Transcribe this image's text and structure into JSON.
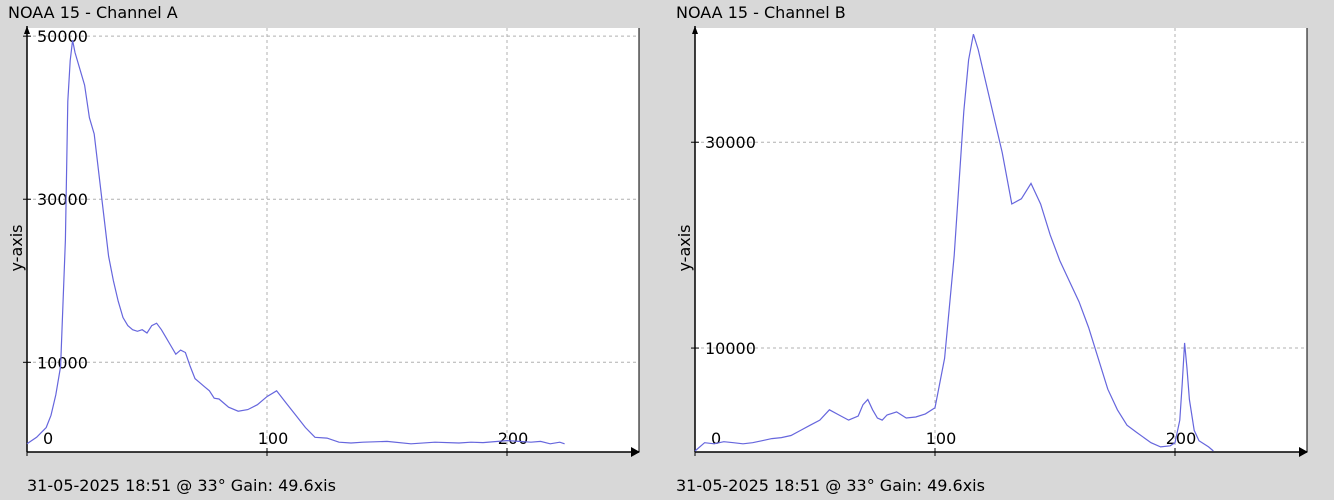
{
  "chart_data": [
    {
      "type": "line",
      "title": "NOAA 15 - Channel A",
      "ylabel": "y-axis",
      "xlabel": "",
      "xlim": [
        0,
        255
      ],
      "ylim": [
        -1000,
        51000
      ],
      "xticks": [
        0,
        100,
        200
      ],
      "xtick_labels": [
        "0",
        "100",
        "200"
      ],
      "yticks": [
        10000,
        30000,
        50000
      ],
      "ytick_labels": [
        "10000",
        "30000",
        "50000"
      ],
      "grid": true,
      "line_color": "#6666dd",
      "footer": "31-05-2025 18:51 @ 33° Gain: 49.6xis",
      "series": [
        {
          "x": [
            0,
            4,
            8,
            10,
            12,
            14,
            16,
            17,
            18,
            19,
            20,
            22,
            24,
            26,
            28,
            30,
            32,
            34,
            36,
            38,
            40,
            42,
            44,
            46,
            48,
            50,
            52,
            54,
            56,
            58,
            60,
            62,
            64,
            66,
            68,
            70,
            72,
            74,
            76,
            78,
            80,
            84,
            88,
            92,
            96,
            100,
            104,
            108,
            112,
            116,
            120,
            125,
            130,
            135,
            140,
            150,
            160,
            170,
            180,
            185,
            190,
            200,
            205,
            210,
            214,
            218,
            222,
            224
          ],
          "y": [
            0,
            800,
            2000,
            3500,
            6000,
            9500,
            25000,
            42000,
            47000,
            49500,
            48000,
            46000,
            44000,
            40000,
            38000,
            33000,
            28000,
            23000,
            20000,
            17500,
            15500,
            14500,
            14000,
            13800,
            14000,
            13600,
            14500,
            14800,
            14000,
            13000,
            12000,
            11000,
            11500,
            11200,
            9500,
            8000,
            7500,
            7000,
            6500,
            5600,
            5500,
            4500,
            4000,
            4200,
            4800,
            5800,
            6500,
            5000,
            3500,
            2000,
            800,
            700,
            200,
            100,
            200,
            300,
            0,
            200,
            100,
            200,
            150,
            400,
            300,
            200,
            300,
            0,
            200,
            0
          ]
        }
      ]
    },
    {
      "type": "line",
      "title": "NOAA 15 - Channel B",
      "ylabel": "y-axis",
      "xlabel": "",
      "xlim": [
        0,
        255
      ],
      "ylim": [
        -100,
        41100
      ],
      "xticks": [
        0,
        100,
        200
      ],
      "xtick_labels": [
        "0",
        "100",
        "200"
      ],
      "yticks": [
        10000,
        30000
      ],
      "ytick_labels": [
        "10000",
        "30000"
      ],
      "grid": true,
      "line_color": "#6666dd",
      "footer": "31-05-2025 18:51 @ 33° Gain: 49.6xis",
      "series": [
        {
          "x": [
            0,
            4,
            8,
            12,
            16,
            20,
            24,
            28,
            32,
            36,
            40,
            44,
            48,
            52,
            56,
            60,
            64,
            68,
            70,
            72,
            74,
            76,
            78,
            80,
            84,
            88,
            92,
            96,
            100,
            104,
            108,
            112,
            114,
            116,
            118,
            120,
            124,
            128,
            132,
            136,
            140,
            144,
            148,
            152,
            156,
            160,
            164,
            168,
            172,
            176,
            180,
            184,
            190,
            194,
            198,
            200,
            202,
            203,
            204,
            205,
            206,
            208,
            210,
            214,
            216
          ],
          "y": [
            0,
            800,
            700,
            900,
            800,
            700,
            800,
            1000,
            1200,
            1300,
            1500,
            2000,
            2500,
            3000,
            4000,
            3500,
            3000,
            3400,
            4500,
            5000,
            4000,
            3200,
            3000,
            3500,
            3800,
            3200,
            3300,
            3600,
            4200,
            9000,
            19000,
            33000,
            38000,
            40500,
            39000,
            37000,
            33000,
            29000,
            24000,
            24500,
            26000,
            24000,
            21000,
            18500,
            16500,
            14500,
            12000,
            9000,
            6000,
            4000,
            2500,
            1800,
            800,
            400,
            500,
            800,
            3000,
            6500,
            10500,
            8000,
            5000,
            2000,
            1000,
            400,
            0
          ]
        }
      ]
    }
  ]
}
